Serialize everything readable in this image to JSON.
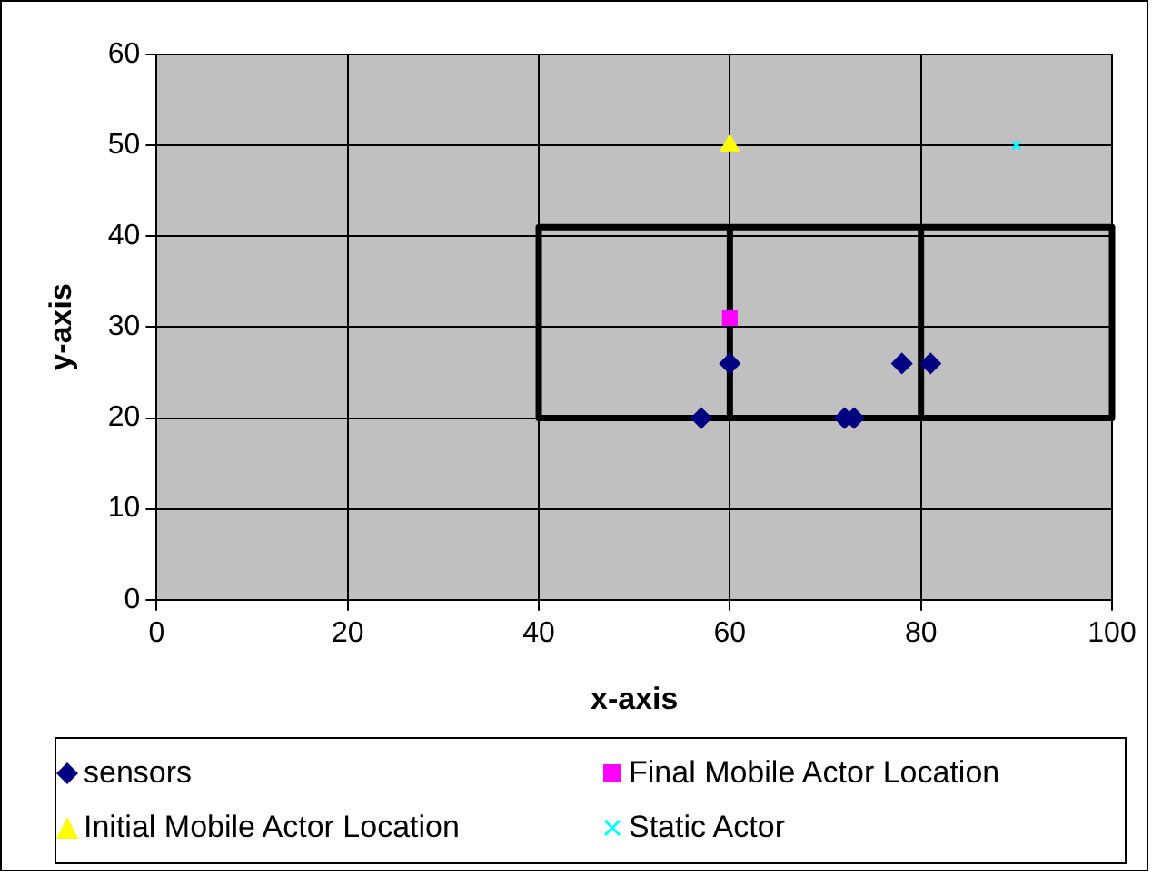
{
  "chart_data": {
    "type": "scatter",
    "xlabel": "x-axis",
    "ylabel": "y-axis",
    "xlim": [
      0,
      100
    ],
    "xticks": [
      0,
      20,
      40,
      60,
      80,
      100
    ],
    "ylim": [
      0,
      60
    ],
    "yticks": [
      0,
      10,
      20,
      30,
      40,
      50,
      60
    ],
    "grid": true,
    "legend": "bottom",
    "series": [
      {
        "type": "line",
        "color": "#000000",
        "marker": "none",
        "x": [
          40,
          60,
          80,
          100
        ],
        "values": [
          41,
          41,
          41,
          41
        ]
      },
      {
        "type": "line",
        "color": "#000000",
        "marker": "none",
        "x": [
          40,
          60,
          80,
          100
        ],
        "values": [
          20,
          20,
          20,
          20
        ],
        "errors": [
          [
            20,
            41
          ],
          [
            20,
            41
          ],
          [
            20,
            41
          ],
          [
            20,
            41
          ]
        ]
      },
      {
        "name": "sensors",
        "color": "#000080",
        "marker": "diamond",
        "x": [
          57,
          60,
          72,
          73,
          78,
          81
        ],
        "values": [
          20,
          26,
          20,
          20,
          26,
          26
        ]
      },
      {
        "name": "Final Mobile Actor Location",
        "color": "#ff00ff",
        "marker": "square",
        "x": [
          60
        ],
        "values": [
          31
        ]
      },
      {
        "name": "Initial Mobile Actor Location",
        "color": "#ffff00",
        "marker": "triangle",
        "x": [
          60
        ],
        "values": [
          50
        ]
      },
      {
        "name": "Static Actor",
        "color": "#00ffff",
        "marker": "cross",
        "x": [
          90
        ],
        "values": [
          50
        ]
      }
    ]
  }
}
